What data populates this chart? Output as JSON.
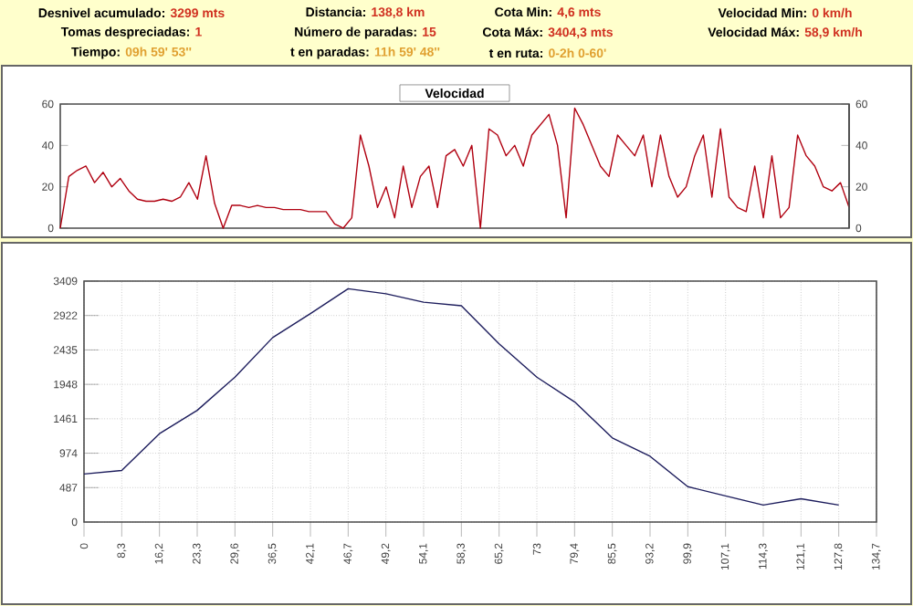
{
  "chart_data": [
    {
      "type": "line",
      "title": "Velocidad",
      "annotations": [
        "Desnivel acumulado:",
        "3299 mts",
        "Distancia:",
        "138,8 km",
        "Cota Min:",
        "4,6 mts",
        "Velocidad Min:",
        "0 km/h",
        "Tomas despreciadas:",
        "1",
        "Número de paradas:",
        "15",
        "Cota Máx:",
        "3404,3 mts",
        "Velocidad Máx:",
        "58,9 km/h",
        "Tiempo:",
        "09h 59' 53''",
        "t en paradas:",
        "11h 59' 48''",
        "t en ruta:",
        "0-2h 0-60'"
      ],
      "categories": [
        null,
        null,
        null,
        null,
        null,
        null,
        null,
        null,
        null,
        null,
        null,
        null,
        null,
        null,
        null,
        null,
        null,
        null,
        null,
        null,
        null,
        null,
        null,
        null,
        null,
        null,
        null,
        null,
        null,
        null,
        null,
        null,
        null,
        null,
        null,
        null,
        null,
        null,
        null,
        null,
        null,
        null,
        null,
        null,
        null,
        null,
        null,
        null,
        null,
        null,
        null,
        null,
        null,
        null,
        null,
        null,
        null,
        null,
        null,
        null,
        null,
        null,
        null,
        null,
        null,
        null,
        null,
        null,
        null,
        null,
        null,
        null,
        null,
        null,
        null,
        null,
        null,
        null,
        null,
        null,
        null,
        null,
        null,
        null,
        null,
        null,
        null,
        null,
        null,
        null,
        null,
        null,
        null
      ],
      "series": [
        {
          "color": "#b00010",
          "values": [
            0,
            25,
            28,
            30,
            22,
            27,
            20,
            24,
            18,
            14,
            13,
            13,
            14,
            13,
            15,
            22,
            14,
            35,
            12,
            0,
            11,
            11,
            10,
            11,
            10,
            10,
            9,
            9,
            9,
            8,
            8,
            8,
            2,
            0,
            5,
            45,
            30,
            10,
            20,
            5,
            30,
            10,
            25,
            30,
            10,
            35,
            38,
            30,
            40,
            0,
            48,
            45,
            35,
            40,
            30,
            45,
            50,
            55,
            40,
            5,
            58,
            50,
            40,
            30,
            25,
            45,
            40,
            35,
            45,
            20,
            45,
            25,
            15,
            20,
            35,
            45,
            15,
            48,
            15,
            10,
            8,
            30,
            5,
            35,
            5,
            10,
            45,
            35,
            30,
            20,
            18,
            22,
            10
          ]
        }
      ],
      "ylim": [
        0,
        60
      ],
      "yticks": [
        0,
        20,
        40,
        60
      ],
      "y2lim": [
        0,
        60
      ],
      "y2ticks": [
        0,
        20,
        40,
        60
      ]
    },
    {
      "type": "line",
      "categories": [
        "0",
        "8,3",
        "16,2",
        "23,3",
        "29,6",
        "36,5",
        "42,1",
        "46,7",
        "49,2",
        "54,1",
        "58,3",
        "65,2",
        "73",
        "79,4",
        "85,5",
        "93,2",
        "99,9",
        "107,1",
        "114,3",
        "121,1",
        "127,8",
        "134,7"
      ],
      "series": [
        {
          "color": "#1c1c5c",
          "values": [
            680,
            730,
            1250,
            1580,
            2050,
            2610,
            2950,
            3300,
            3230,
            3110,
            3060,
            2520,
            2050,
            1700,
            1190,
            930,
            500,
            370,
            240,
            330,
            240,
            null
          ]
        }
      ],
      "ylim": [
        0,
        3409
      ],
      "yticks": [
        0,
        487,
        974,
        1461,
        1948,
        2435,
        2922,
        3409
      ],
      "grid": true
    }
  ]
}
